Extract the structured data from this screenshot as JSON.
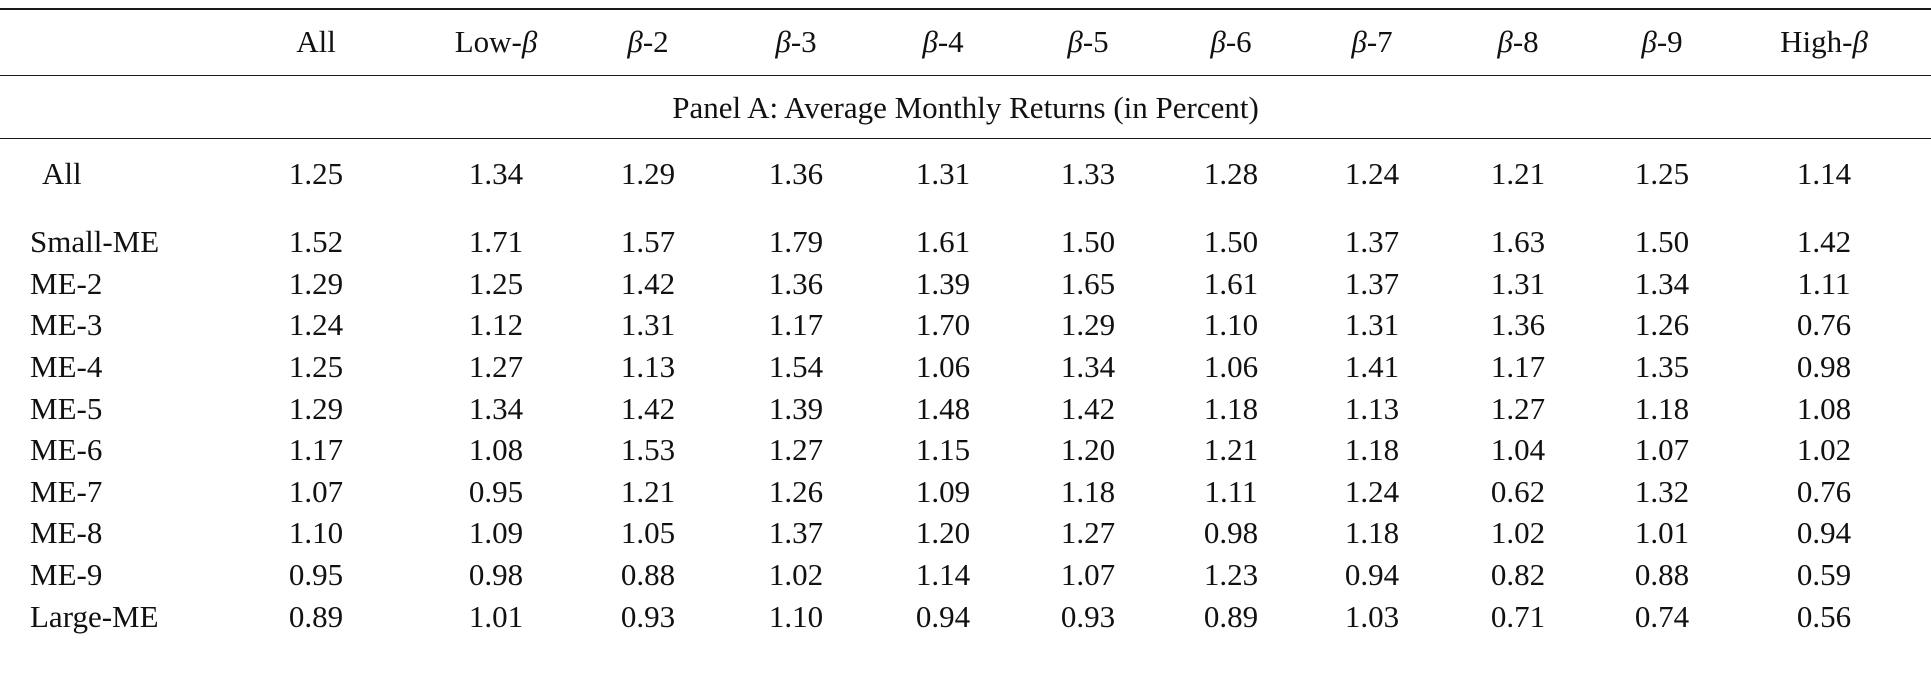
{
  "table": {
    "header": {
      "stub": "",
      "columns": [
        {
          "prefix": "All",
          "beta": "",
          "suffix": ""
        },
        {
          "prefix": "Low-",
          "beta": "β",
          "suffix": ""
        },
        {
          "prefix": "",
          "beta": "β",
          "suffix": "-2"
        },
        {
          "prefix": "",
          "beta": "β",
          "suffix": "-3"
        },
        {
          "prefix": "",
          "beta": "β",
          "suffix": "-4"
        },
        {
          "prefix": "",
          "beta": "β",
          "suffix": "-5"
        },
        {
          "prefix": "",
          "beta": "β",
          "suffix": "-6"
        },
        {
          "prefix": "",
          "beta": "β",
          "suffix": "-7"
        },
        {
          "prefix": "",
          "beta": "β",
          "suffix": "-8"
        },
        {
          "prefix": "",
          "beta": "β",
          "suffix": "-9"
        },
        {
          "prefix": "High-",
          "beta": "β",
          "suffix": ""
        }
      ]
    },
    "panel_title": "Panel A: Average Monthly Returns (in Percent)",
    "rows": [
      {
        "label": "All",
        "values": [
          "1.25",
          "1.34",
          "1.29",
          "1.36",
          "1.31",
          "1.33",
          "1.28",
          "1.24",
          "1.21",
          "1.25",
          "1.14"
        ]
      },
      {
        "label": "Small-ME",
        "values": [
          "1.52",
          "1.71",
          "1.57",
          "1.79",
          "1.61",
          "1.50",
          "1.50",
          "1.37",
          "1.63",
          "1.50",
          "1.42"
        ]
      },
      {
        "label": "ME-2",
        "values": [
          "1.29",
          "1.25",
          "1.42",
          "1.36",
          "1.39",
          "1.65",
          "1.61",
          "1.37",
          "1.31",
          "1.34",
          "1.11"
        ]
      },
      {
        "label": "ME-3",
        "values": [
          "1.24",
          "1.12",
          "1.31",
          "1.17",
          "1.70",
          "1.29",
          "1.10",
          "1.31",
          "1.36",
          "1.26",
          "0.76"
        ]
      },
      {
        "label": "ME-4",
        "values": [
          "1.25",
          "1.27",
          "1.13",
          "1.54",
          "1.06",
          "1.34",
          "1.06",
          "1.41",
          "1.17",
          "1.35",
          "0.98"
        ]
      },
      {
        "label": "ME-5",
        "values": [
          "1.29",
          "1.34",
          "1.42",
          "1.39",
          "1.48",
          "1.42",
          "1.18",
          "1.13",
          "1.27",
          "1.18",
          "1.08"
        ]
      },
      {
        "label": "ME-6",
        "values": [
          "1.17",
          "1.08",
          "1.53",
          "1.27",
          "1.15",
          "1.20",
          "1.21",
          "1.18",
          "1.04",
          "1.07",
          "1.02"
        ]
      },
      {
        "label": "ME-7",
        "values": [
          "1.07",
          "0.95",
          "1.21",
          "1.26",
          "1.09",
          "1.18",
          "1.11",
          "1.24",
          "0.62",
          "1.32",
          "0.76"
        ]
      },
      {
        "label": "ME-8",
        "values": [
          "1.10",
          "1.09",
          "1.05",
          "1.37",
          "1.20",
          "1.27",
          "0.98",
          "1.18",
          "1.02",
          "1.01",
          "0.94"
        ]
      },
      {
        "label": "ME-9",
        "values": [
          "0.95",
          "0.98",
          "0.88",
          "1.02",
          "1.14",
          "1.07",
          "1.23",
          "0.94",
          "0.82",
          "0.88",
          "0.59"
        ]
      },
      {
        "label": "Large-ME",
        "values": [
          "0.89",
          "1.01",
          "0.93",
          "1.10",
          "0.94",
          "0.93",
          "0.89",
          "1.03",
          "0.71",
          "0.74",
          "0.56"
        ]
      }
    ]
  }
}
